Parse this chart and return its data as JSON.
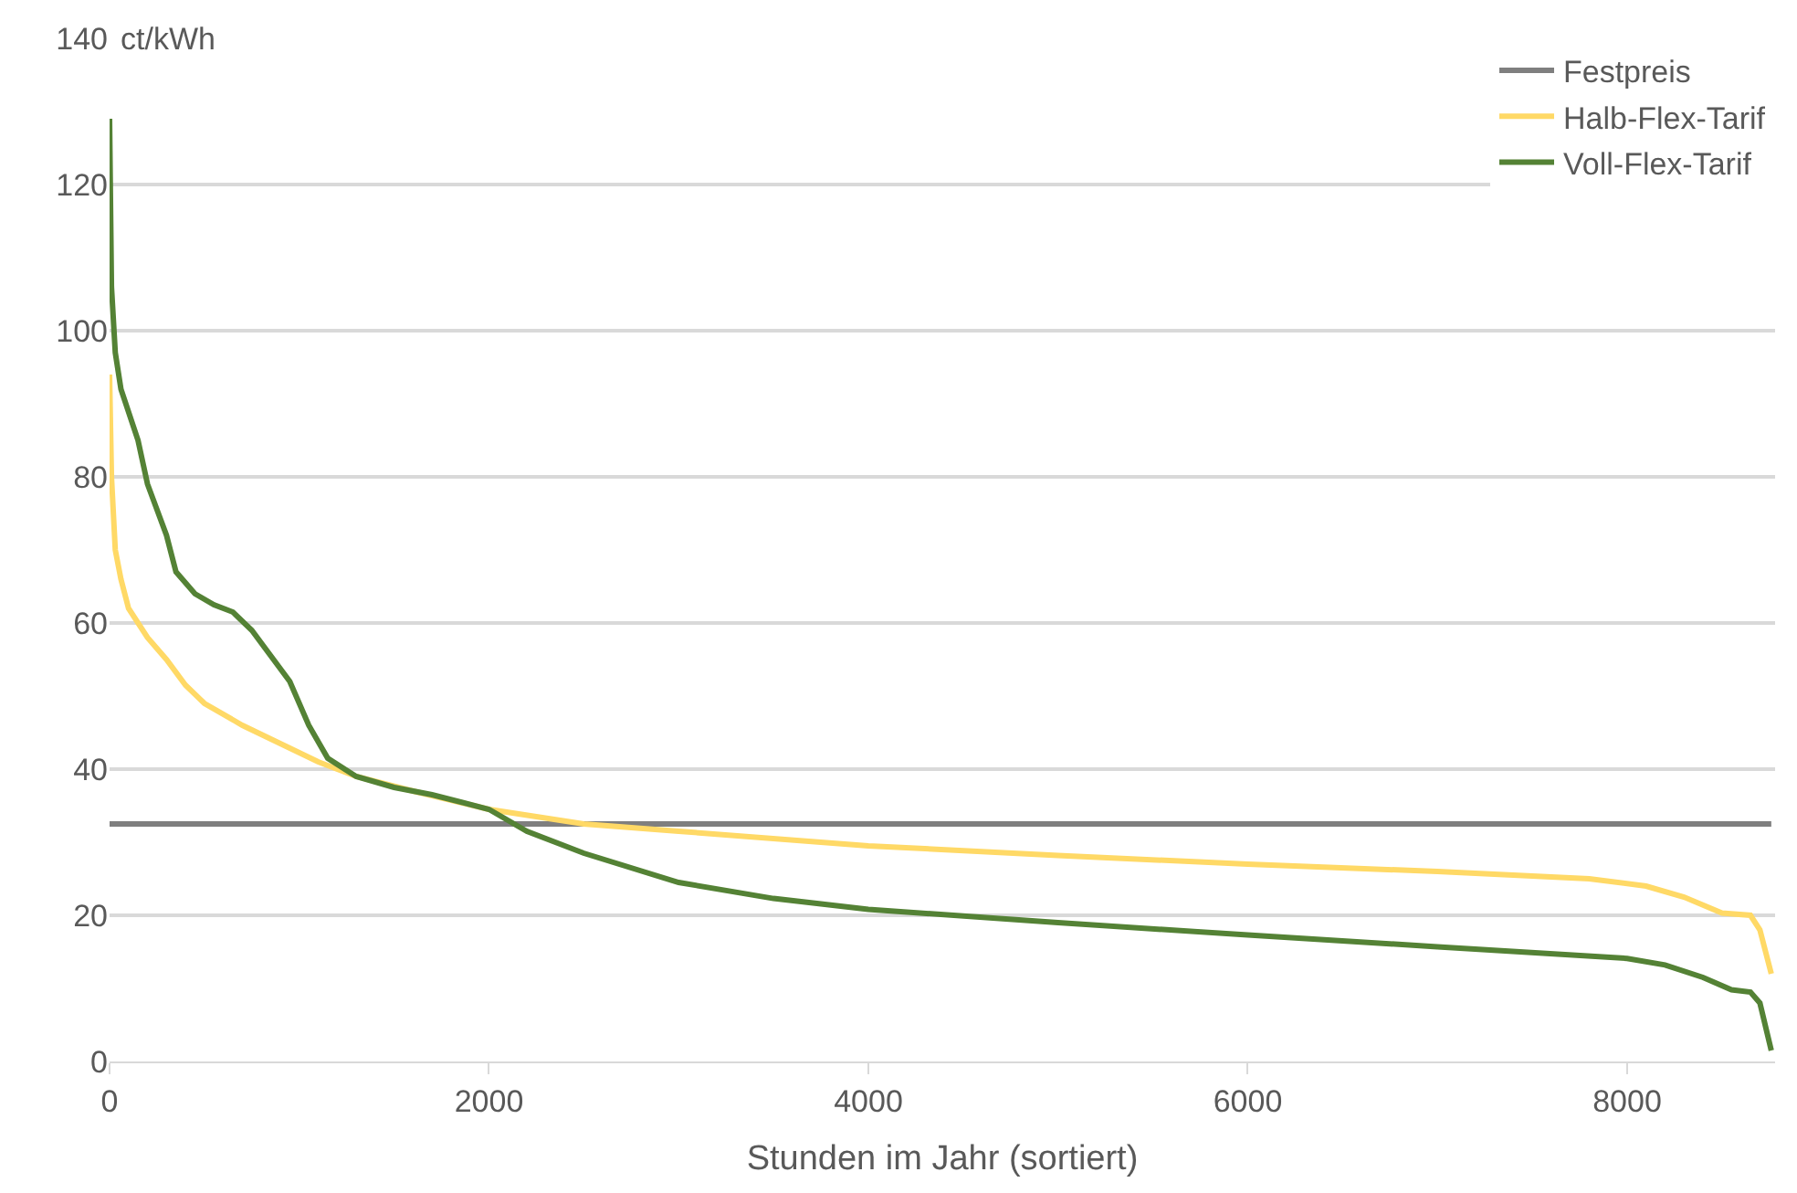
{
  "chart_data": {
    "type": "line",
    "xlabel": "Stunden im Jahr (sortiert)",
    "ylabel": "ct/kWh",
    "xlim": [
      0,
      8780
    ],
    "xticks": [
      0,
      2000,
      4000,
      6000,
      8000
    ],
    "ylim": [
      0,
      140
    ],
    "yticks": [
      0,
      20,
      40,
      60,
      80,
      100,
      120,
      140
    ],
    "grid": "y",
    "legend": "top right",
    "marker": "none",
    "line_style": "solid",
    "series": [
      {
        "name": "Festpreis",
        "color": "#7f7f7f",
        "x": [
          0,
          8760
        ],
        "values": [
          32.5,
          32.5
        ]
      },
      {
        "name": "Halb-Flex-Tarif",
        "color": "#ffd966",
        "x": [
          0,
          10,
          30,
          60,
          100,
          200,
          300,
          400,
          500,
          700,
          900,
          1100,
          1300,
          1600,
          2000,
          2500,
          3000,
          4000,
          5000,
          6000,
          7000,
          7800,
          8100,
          8300,
          8500,
          8650,
          8700,
          8760
        ],
        "values": [
          94,
          80,
          70,
          66,
          62,
          58,
          55,
          51.5,
          49,
          46,
          43.5,
          41,
          39,
          37,
          34.5,
          32.5,
          31.5,
          29.5,
          28.2,
          27,
          26,
          25,
          24,
          22.5,
          20.3,
          20,
          18,
          12
        ]
      },
      {
        "name": "Voll-Flex-Tarif",
        "color": "#548235",
        "x": [
          0,
          10,
          30,
          60,
          150,
          200,
          300,
          350,
          450,
          550,
          650,
          750,
          850,
          950,
          1050,
          1150,
          1300,
          1500,
          1700,
          2000,
          2200,
          2500,
          3000,
          3500,
          4000,
          5000,
          6000,
          7000,
          8000,
          8200,
          8400,
          8550,
          8650,
          8700,
          8760
        ],
        "values": [
          129,
          106,
          97,
          92,
          85,
          79,
          72,
          67,
          64,
          62.5,
          61.5,
          59,
          55.5,
          52,
          46,
          41.5,
          39,
          37.5,
          36.5,
          34.5,
          31.5,
          28.5,
          24.5,
          22.3,
          20.8,
          19,
          17.3,
          15.7,
          14.1,
          13.2,
          11.5,
          9.8,
          9.5,
          8,
          1.5
        ]
      }
    ]
  }
}
